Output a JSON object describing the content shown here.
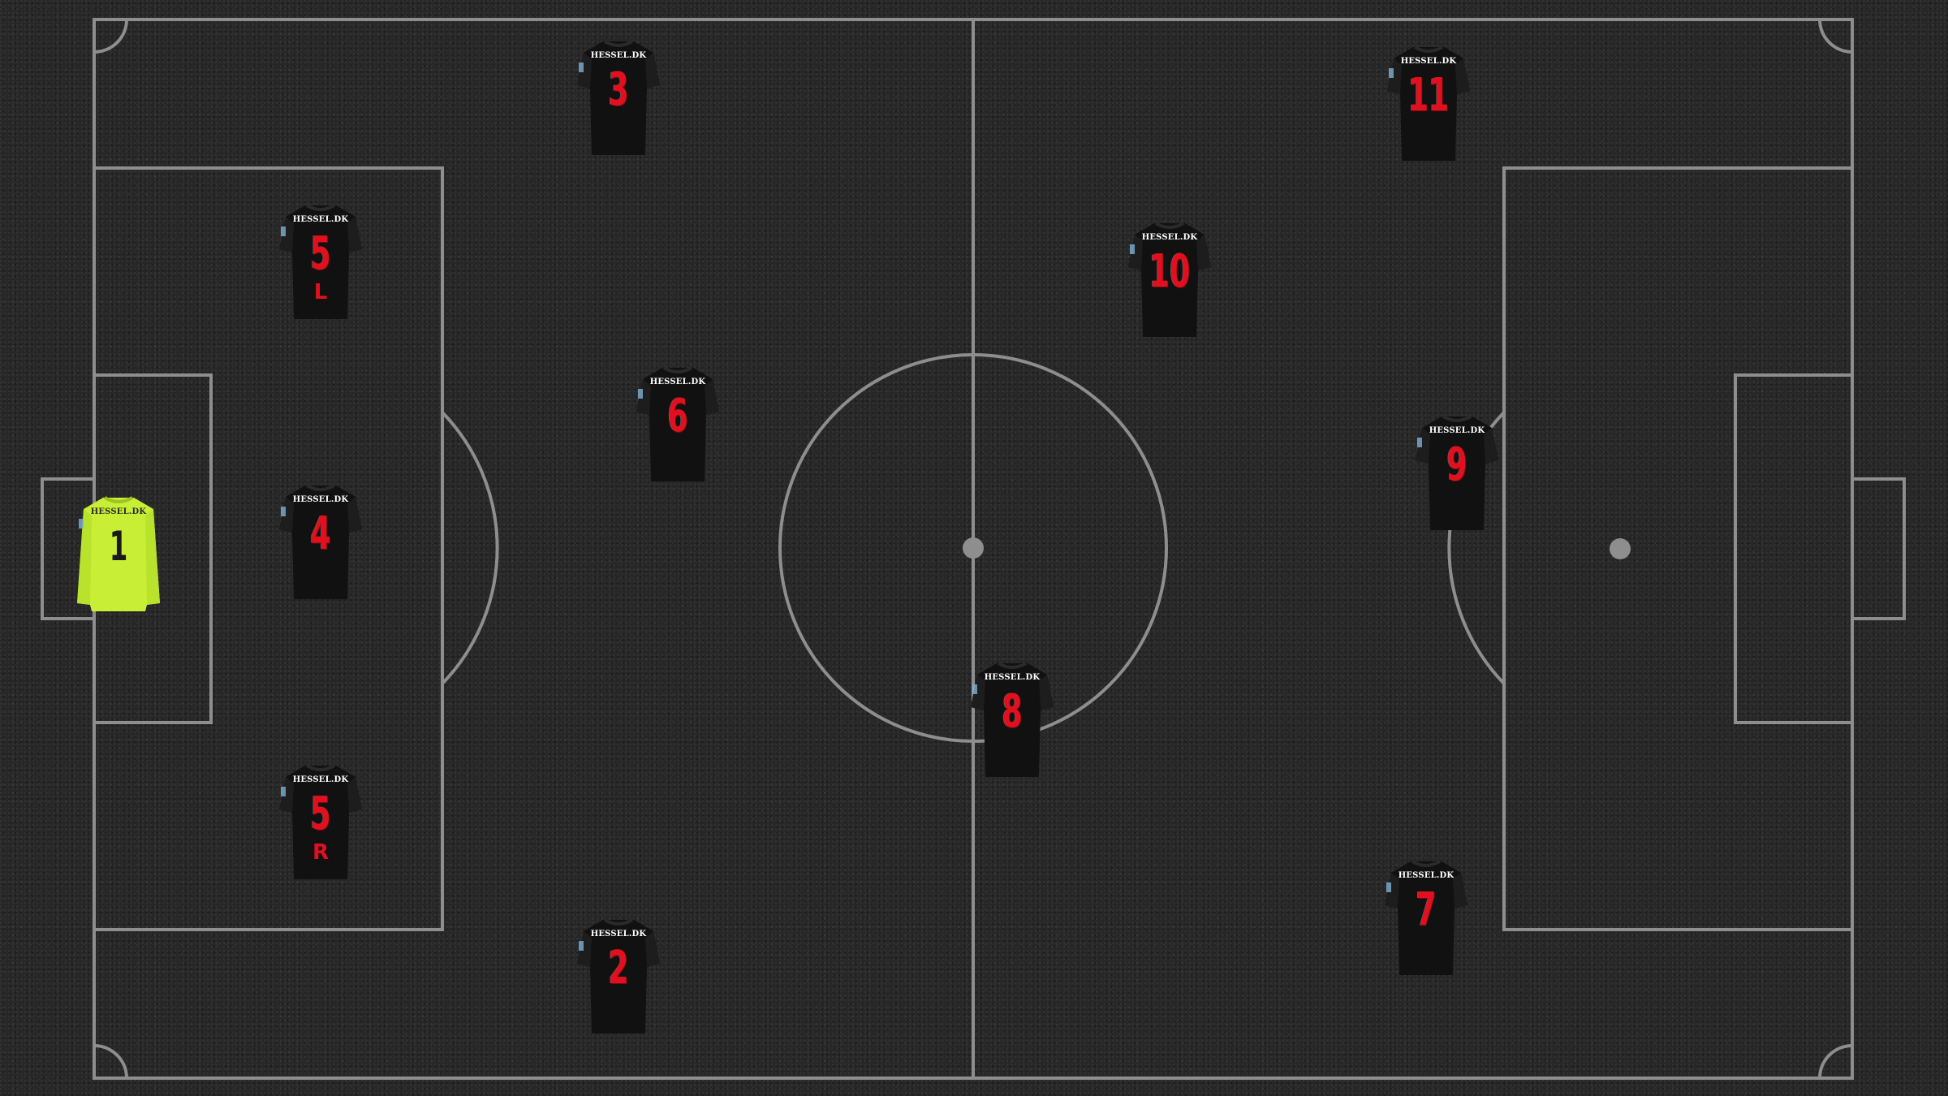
{
  "colors": {
    "pitch": "#272727",
    "lines": "#8e8e8e",
    "outfield_shirt": "#111111",
    "outfield_number": "#e2101f",
    "goalkeeper_shirt": "#c8ef36",
    "goalkeeper_number": "#1a1a1a"
  },
  "players": [
    {
      "number": "1",
      "suffix": "",
      "sponsor": "HESSEL.DK",
      "role": "goalkeeper"
    },
    {
      "number": "5",
      "suffix": "L",
      "sponsor": "HESSEL.DK",
      "role": "outfield"
    },
    {
      "number": "4",
      "suffix": "",
      "sponsor": "HESSEL.DK",
      "role": "outfield"
    },
    {
      "number": "5",
      "suffix": "R",
      "sponsor": "HESSEL.DK",
      "role": "outfield"
    },
    {
      "number": "3",
      "suffix": "",
      "sponsor": "HESSEL.DK",
      "role": "outfield"
    },
    {
      "number": "6",
      "suffix": "",
      "sponsor": "HESSEL.DK",
      "role": "outfield"
    },
    {
      "number": "2",
      "suffix": "",
      "sponsor": "HESSEL.DK",
      "role": "outfield"
    },
    {
      "number": "8",
      "suffix": "",
      "sponsor": "HESSEL.DK",
      "role": "outfield"
    },
    {
      "number": "10",
      "suffix": "",
      "sponsor": "HESSEL.DK",
      "role": "outfield"
    },
    {
      "number": "11",
      "suffix": "",
      "sponsor": "HESSEL.DK",
      "role": "outfield"
    },
    {
      "number": "9",
      "suffix": "",
      "sponsor": "HESSEL.DK",
      "role": "outfield"
    },
    {
      "number": "7",
      "suffix": "",
      "sponsor": "HESSEL.DK",
      "role": "outfield"
    }
  ]
}
